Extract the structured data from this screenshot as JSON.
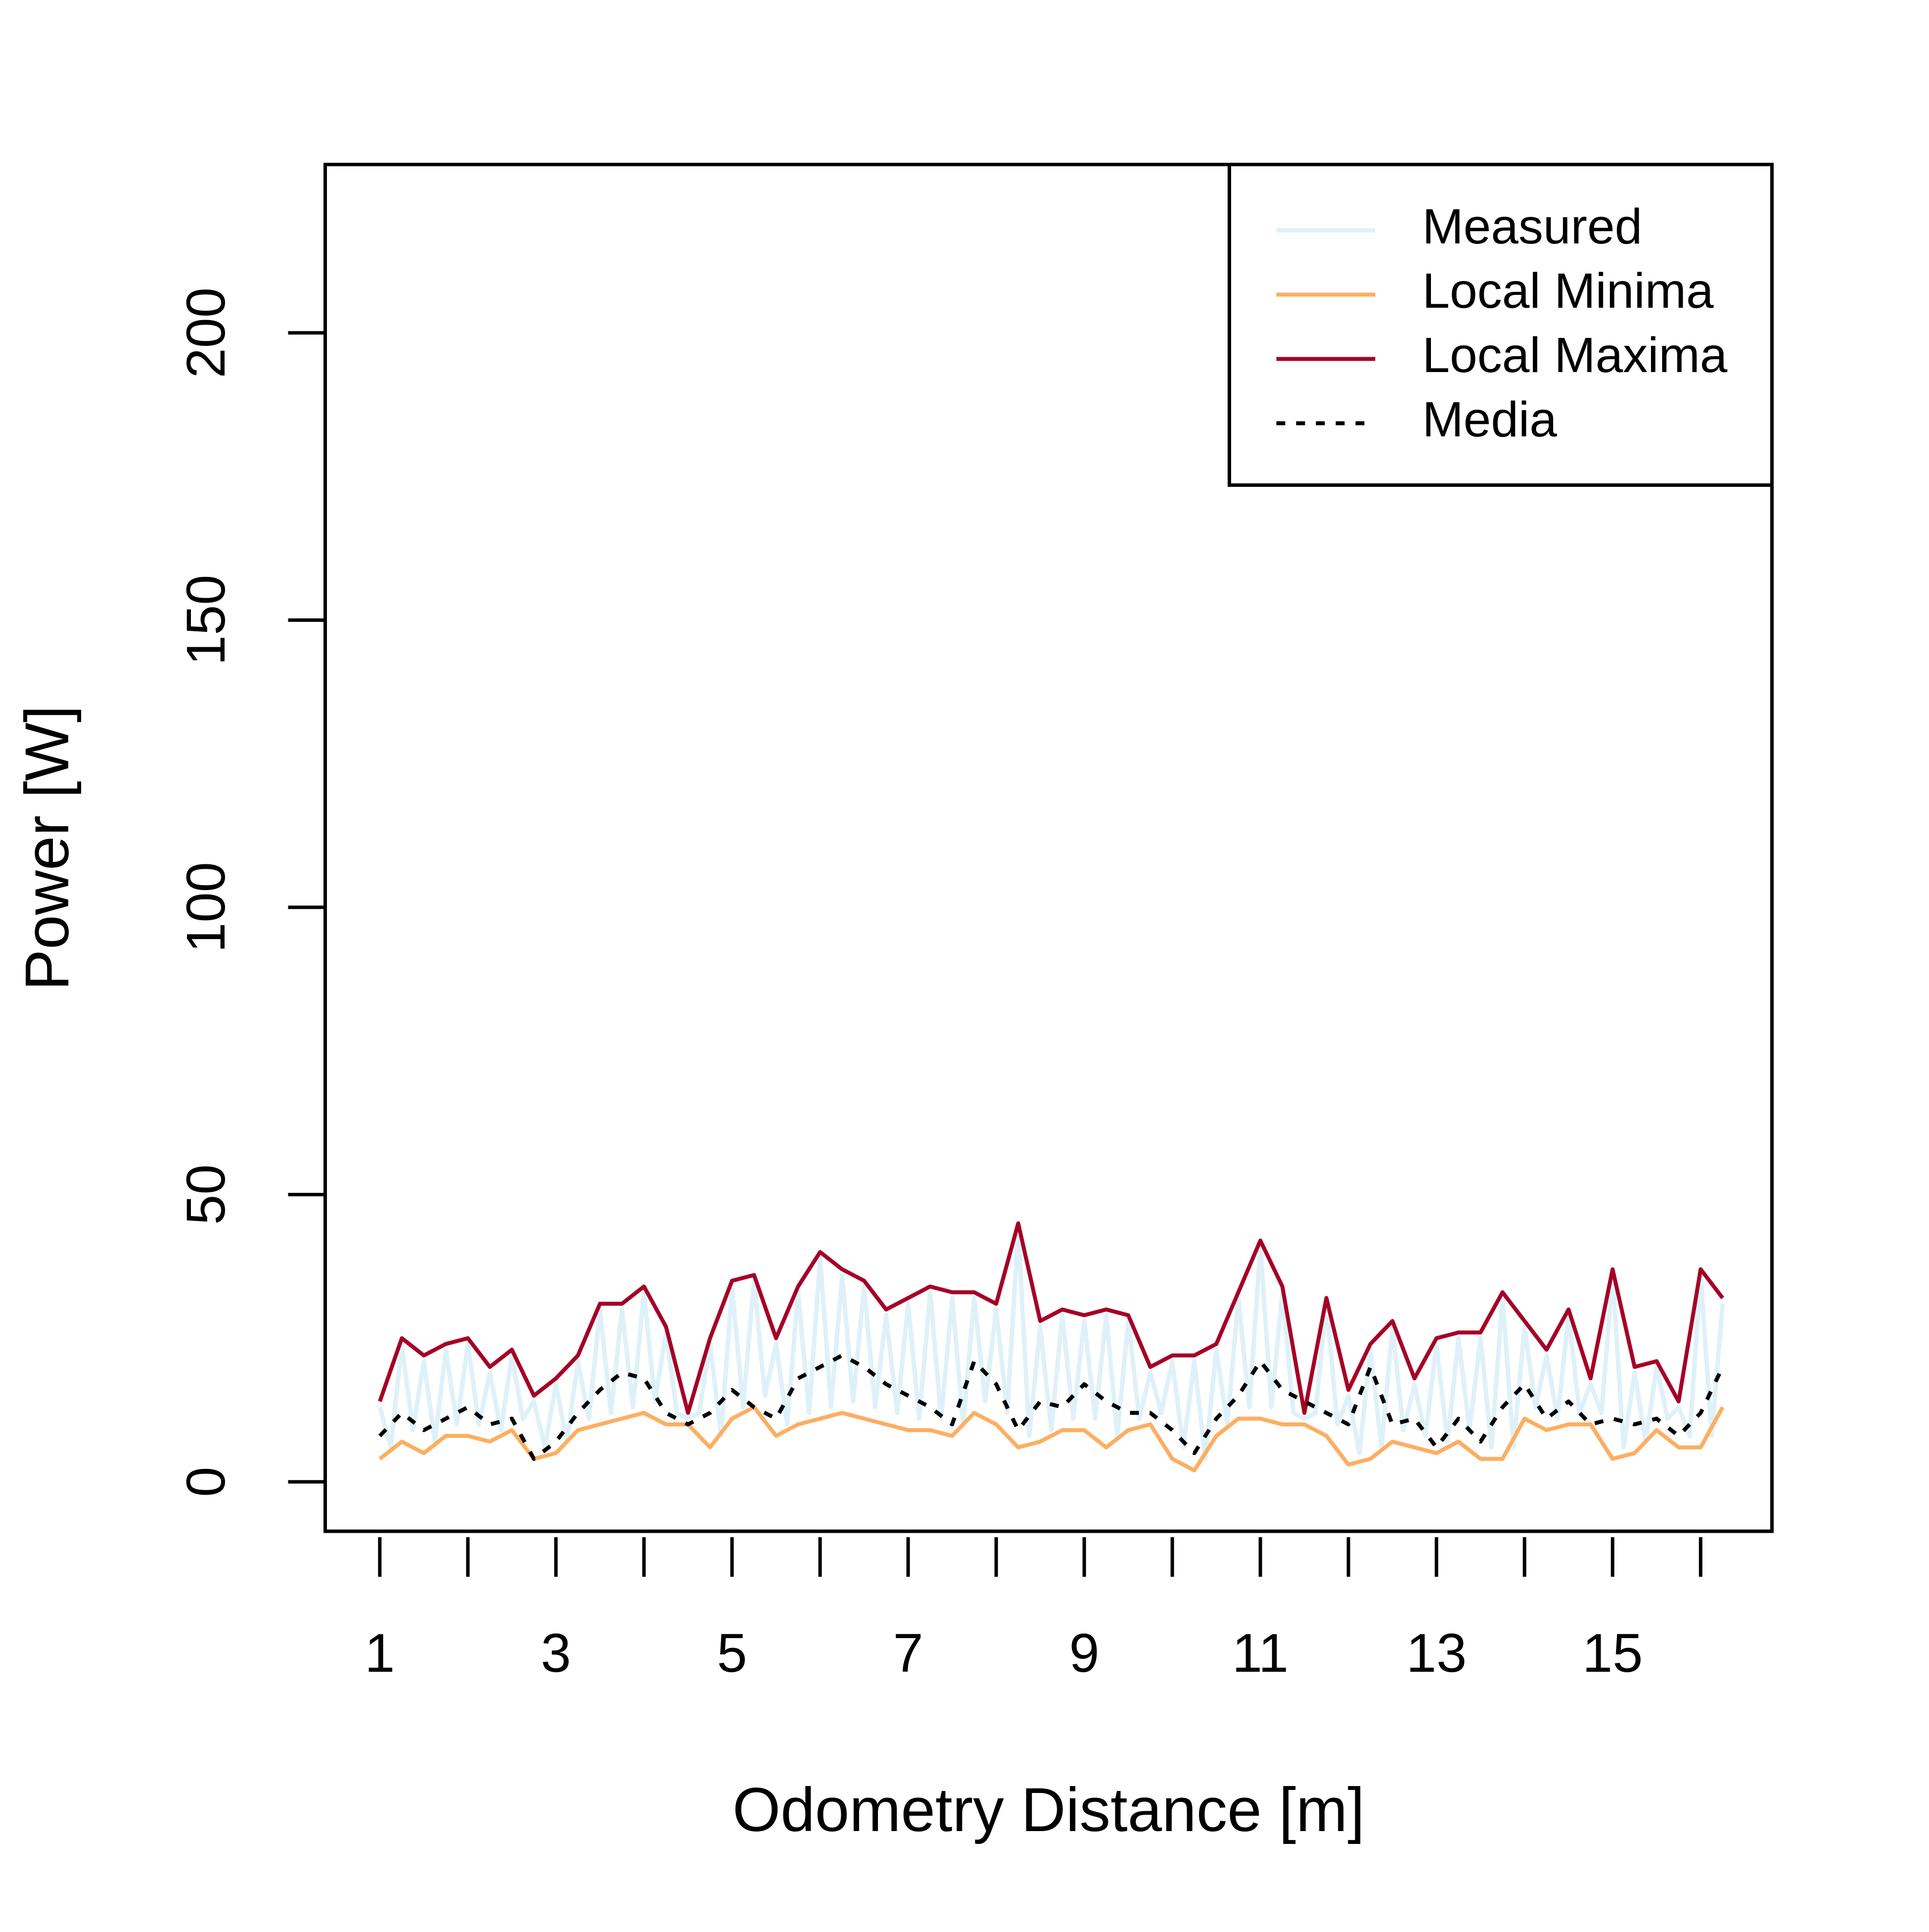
{
  "chart_data": {
    "type": "line",
    "xlabel": "Odometry Distance [m]",
    "ylabel": "Power [W]",
    "xlim": [
      0.38,
      16.81
    ],
    "ylim": [
      -8.6,
      229.3
    ],
    "xticks": [
      1,
      3,
      5,
      7,
      9,
      11,
      13,
      15
    ],
    "xticks_unlabeled": [
      2,
      4,
      6,
      8,
      10,
      12,
      14,
      16
    ],
    "yticks": [
      0,
      50,
      100,
      150,
      200
    ],
    "legend": "topright",
    "x": [
      1,
      1.25,
      1.5,
      1.75,
      2,
      2.25,
      2.5,
      2.75,
      3,
      3.25,
      3.5,
      3.75,
      4,
      4.25,
      4.5,
      4.75,
      5,
      5.25,
      5.5,
      5.75,
      6,
      6.25,
      6.5,
      6.75,
      7,
      7.25,
      7.5,
      7.75,
      8,
      8.25,
      8.5,
      8.75,
      9,
      9.25,
      9.5,
      9.75,
      10,
      10.25,
      10.5,
      10.75,
      11,
      11.25,
      11.5,
      11.75,
      12,
      12.25,
      12.5,
      12.75,
      13,
      13.25,
      13.5,
      13.75,
      14,
      14.25,
      14.5,
      14.75,
      15,
      15.25,
      15.5,
      15.75,
      16,
      16.25
    ],
    "series": [
      {
        "name": "Measured",
        "color": "#dff1f8",
        "width": 9,
        "linestyle": "solid",
        "x": [
          1,
          1.125,
          1.25,
          1.375,
          1.5,
          1.625,
          1.75,
          1.875,
          2,
          2.125,
          2.25,
          2.375,
          2.5,
          2.625,
          2.75,
          2.875,
          3,
          3.125,
          3.25,
          3.375,
          3.5,
          3.625,
          3.75,
          3.875,
          4,
          4.125,
          4.25,
          4.375,
          4.5,
          4.625,
          4.75,
          4.875,
          5,
          5.125,
          5.25,
          5.375,
          5.5,
          5.625,
          5.75,
          5.875,
          6,
          6.125,
          6.25,
          6.375,
          6.5,
          6.625,
          6.75,
          6.875,
          7,
          7.125,
          7.25,
          7.375,
          7.5,
          7.625,
          7.75,
          7.875,
          8,
          8.125,
          8.25,
          8.375,
          8.5,
          8.625,
          8.75,
          8.875,
          9,
          9.125,
          9.25,
          9.375,
          9.5,
          9.625,
          9.75,
          9.875,
          10,
          10.125,
          10.25,
          10.375,
          10.5,
          10.625,
          10.75,
          10.875,
          11,
          11.125,
          11.25,
          11.375,
          11.5,
          11.625,
          11.75,
          11.875,
          12,
          12.125,
          12.25,
          12.375,
          12.5,
          12.625,
          12.75,
          12.875,
          13,
          13.125,
          13.25,
          13.375,
          13.5,
          13.625,
          13.75,
          13.875,
          14,
          14.125,
          14.25,
          14.375,
          14.5,
          14.625,
          14.75,
          14.875,
          15,
          15.125,
          15.25,
          15.375,
          15.5,
          15.625,
          15.75,
          15.875,
          16,
          16.125,
          16.25
        ],
        "values": [
          13,
          6,
          24,
          9,
          21,
          7,
          23,
          10,
          24,
          10,
          19,
          9,
          22,
          11,
          14,
          6,
          17,
          7,
          21,
          11,
          30,
          12,
          30,
          13,
          33,
          14,
          26,
          12,
          11,
          12,
          24,
          8,
          34,
          13,
          35,
          15,
          24,
          10,
          33,
          12,
          39,
          13,
          36,
          14,
          34,
          13,
          29,
          12,
          31,
          11,
          33,
          11,
          32,
          10,
          32,
          14,
          30,
          12,
          44,
          8,
          27,
          9,
          29,
          11,
          28,
          11,
          29,
          8,
          28,
          11,
          19,
          12,
          21,
          6,
          21,
          4,
          23,
          10,
          32,
          13,
          41,
          13,
          33,
          12,
          11,
          12,
          31,
          10,
          15,
          5,
          23,
          6,
          27,
          9,
          17,
          8,
          24,
          7,
          25,
          9,
          25,
          6,
          32,
          6,
          27,
          13,
          22,
          11,
          29,
          12,
          17,
          12,
          36,
          6,
          19,
          7,
          20,
          11,
          13,
          8,
          36,
          8,
          31
        ]
      },
      {
        "name": "Local Minima",
        "color": "#fdae61",
        "width": 8,
        "linestyle": "solid",
        "values": [
          4,
          7,
          5,
          8,
          8,
          7,
          9,
          4,
          5,
          9,
          10,
          11,
          12,
          10,
          10,
          6,
          11,
          13,
          8,
          10,
          11,
          12,
          11,
          10,
          9,
          9,
          8,
          12,
          10,
          6,
          7,
          9,
          9,
          6,
          9,
          10,
          4,
          2,
          8,
          11,
          11,
          10,
          10,
          8,
          3,
          4,
          7,
          6,
          5,
          7,
          4,
          4,
          11,
          9,
          10,
          10,
          4,
          5,
          9,
          6,
          6,
          13
        ]
      },
      {
        "name": "Local Maxima",
        "color": "#a50026",
        "width": 8,
        "linestyle": "solid",
        "values": [
          14,
          25,
          22,
          24,
          25,
          20,
          23,
          15,
          18,
          22,
          31,
          31,
          34,
          27,
          12,
          25,
          35,
          36,
          25,
          34,
          40,
          37,
          35,
          30,
          32,
          34,
          33,
          33,
          31,
          45,
          28,
          30,
          29,
          30,
          29,
          20,
          22,
          22,
          24,
          33,
          42,
          34,
          12,
          32,
          16,
          24,
          28,
          18,
          25,
          26,
          26,
          33,
          28,
          23,
          30,
          18,
          37,
          20,
          21,
          14,
          37,
          32
        ]
      },
      {
        "name": "Media",
        "color": "#000000",
        "width": 8,
        "linestyle": "dotted",
        "values": [
          8,
          12,
          9,
          11,
          13,
          10,
          11,
          4,
          7,
          12,
          16,
          19,
          18,
          12,
          10,
          12,
          16,
          13,
          11,
          18,
          20,
          22,
          20,
          17,
          15,
          13,
          10,
          21,
          17,
          9,
          14,
          13,
          17,
          14,
          12,
          12,
          9,
          5,
          11,
          15,
          21,
          16,
          14,
          12,
          10,
          20,
          10,
          11,
          6,
          11,
          7,
          13,
          17,
          11,
          14,
          10,
          11,
          10,
          11,
          8,
          12,
          20
        ]
      }
    ]
  }
}
